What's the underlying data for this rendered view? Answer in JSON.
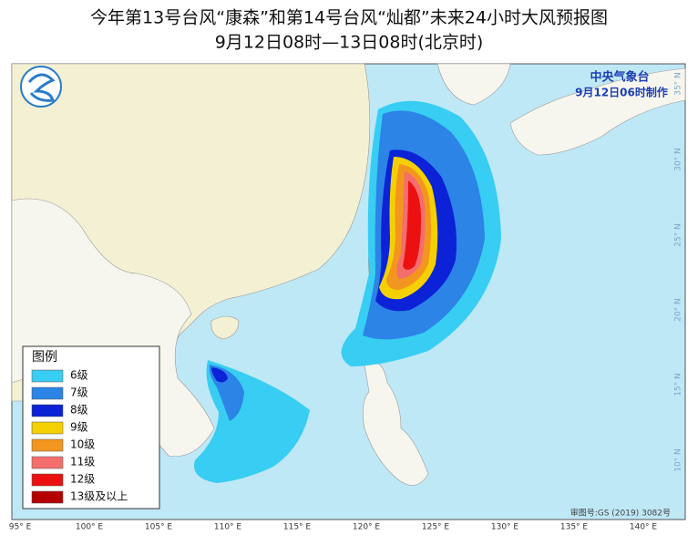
{
  "header": {
    "title": "今年第13号台风“康森”和第14号台风“灿都”未来24小时大风预报图",
    "subtitle": "9月12日08时—13日08时(北京时)"
  },
  "agency": {
    "name": "中央气象台",
    "issued": "9月12日06时制作"
  },
  "legend": {
    "title": "图例",
    "items": [
      {
        "label": "6级",
        "color": "#38cdf3"
      },
      {
        "label": "7级",
        "color": "#2b84e6"
      },
      {
        "label": "8级",
        "color": "#0b22d6"
      },
      {
        "label": "9级",
        "color": "#f4d000"
      },
      {
        "label": "10级",
        "color": "#f3961f"
      },
      {
        "label": "11级",
        "color": "#f46e6e"
      },
      {
        "label": "12级",
        "color": "#ec1010"
      },
      {
        "label": "13级及以上",
        "color": "#b50000"
      }
    ]
  },
  "longitude_labels": [
    "95° E",
    "100° E",
    "105° E",
    "110° E",
    "115° E",
    "120° E",
    "125° E",
    "130° E",
    "135° E",
    "140° E"
  ],
  "latitude_labels": [
    "35° N",
    "30° N",
    "25° N",
    "20° N",
    "15° N",
    "10° N"
  ],
  "copyright": "审图号:GS (2019) 3082号"
}
